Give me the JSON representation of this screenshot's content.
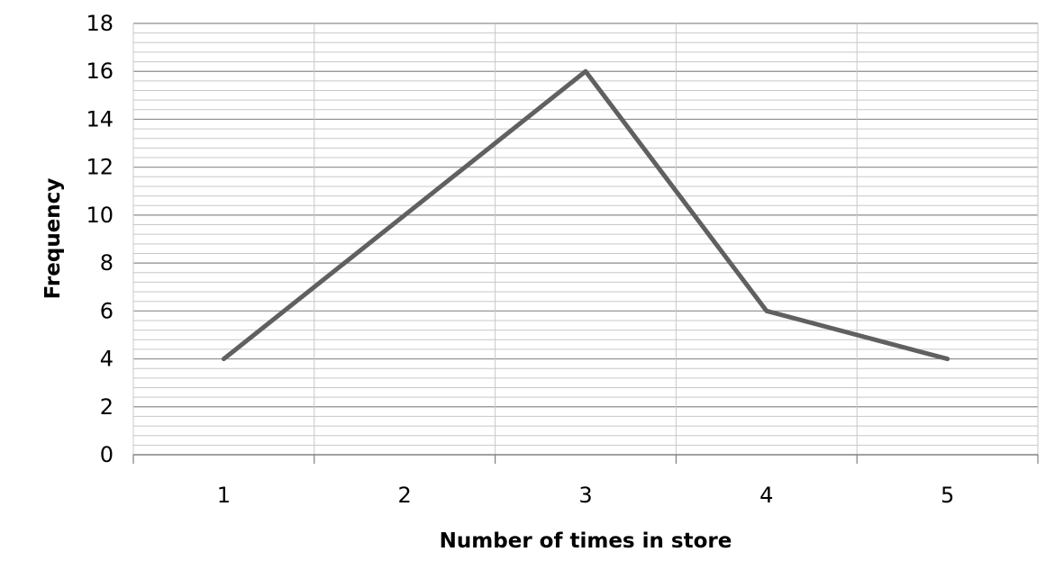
{
  "chart_data": {
    "type": "line",
    "title": "",
    "xlabel": "Number of times in store",
    "ylabel": "Frequency",
    "categories": [
      "1",
      "2",
      "3",
      "4",
      "5"
    ],
    "series": [
      {
        "values": [
          4,
          10,
          16,
          6,
          4
        ]
      }
    ],
    "ylim": [
      0,
      18
    ],
    "y_major_step": 2,
    "y_minor_step": 0.4,
    "y_ticks": [
      "0",
      "2",
      "4",
      "6",
      "8",
      "10",
      "12",
      "14",
      "16",
      "18"
    ],
    "grid": true,
    "legend": "none",
    "colors": {
      "line": "#606060",
      "major_grid": "#8c8c8c",
      "minor_grid": "#c8c8c8",
      "axis": "#808080"
    }
  }
}
